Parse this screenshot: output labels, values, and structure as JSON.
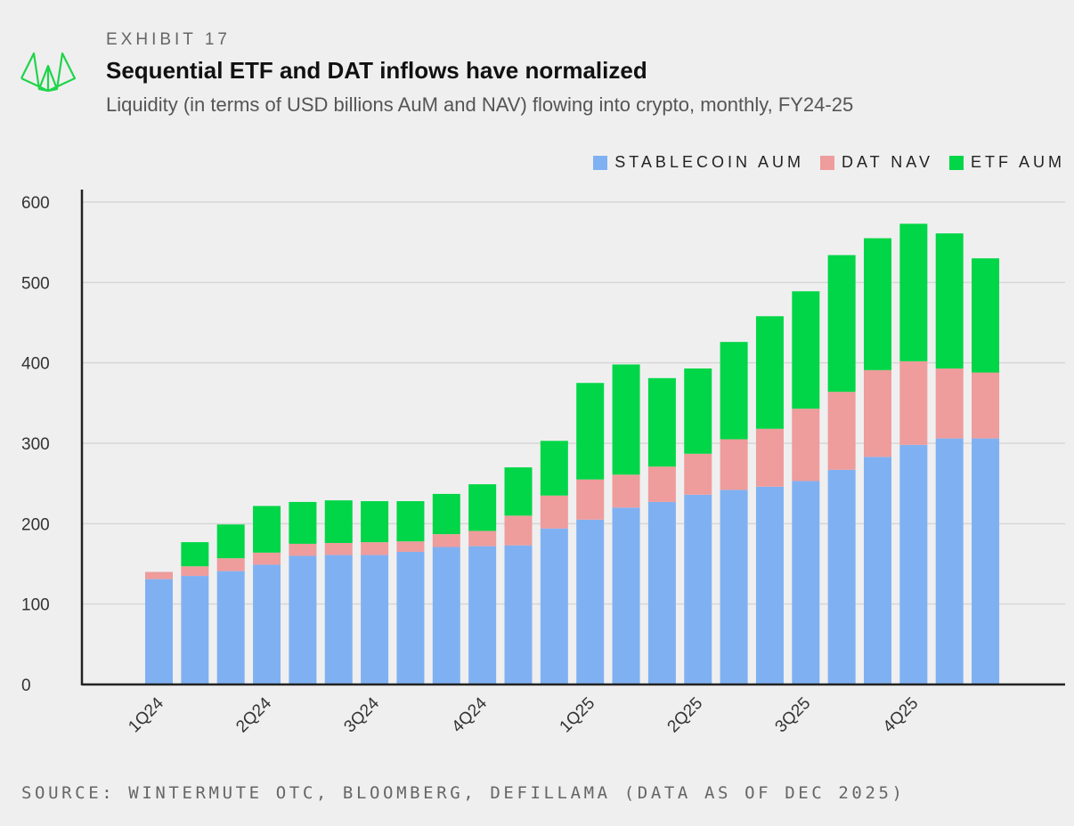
{
  "header": {
    "exhibit": "EXHIBIT 17",
    "title": "Sequential ETF and DAT inflows have normalized",
    "subtitle": "Liquidity (in terms of USD billions AuM and NAV) flowing into crypto, monthly, FY24-25"
  },
  "footer": {
    "source": "SOURCE: WINTERMUTE OTC, BLOOMBERG, DEFILLAMA (DATA AS OF DEC 2025)"
  },
  "logo_icon": "wintermute-logo-icon",
  "chart_data": {
    "type": "bar",
    "stacked": true,
    "title": "Sequential ETF and DAT inflows have normalized",
    "ylim": [
      0,
      600
    ],
    "yticks": [
      0,
      100,
      200,
      300,
      400,
      500,
      600
    ],
    "grid": true,
    "legend_placement": "top-right",
    "xtick_labels": [
      "1Q24",
      "2Q24",
      "3Q24",
      "4Q24",
      "1Q25",
      "2Q25",
      "3Q25",
      "4Q25"
    ],
    "xtick_every": 3,
    "series": [
      {
        "name": "STABLECOIN AUM",
        "color": "#7fb1f2",
        "values": [
          131,
          135,
          141,
          149,
          160,
          161,
          161,
          165,
          171,
          172,
          173,
          194,
          205,
          220,
          227,
          236,
          242,
          246,
          253,
          267,
          283,
          298,
          306,
          306
        ]
      },
      {
        "name": "DAT NAV",
        "color": "#ee9c9c",
        "values": [
          9,
          12,
          16,
          15,
          15,
          15,
          16,
          13,
          16,
          19,
          37,
          41,
          50,
          41,
          44,
          51,
          63,
          72,
          90,
          97,
          108,
          104,
          87,
          82
        ]
      },
      {
        "name": "ETF AUM",
        "color": "#00d647",
        "values": [
          0,
          30,
          42,
          58,
          52,
          53,
          51,
          50,
          50,
          58,
          60,
          68,
          120,
          137,
          110,
          106,
          121,
          140,
          146,
          170,
          164,
          171,
          168,
          142
        ]
      }
    ]
  }
}
